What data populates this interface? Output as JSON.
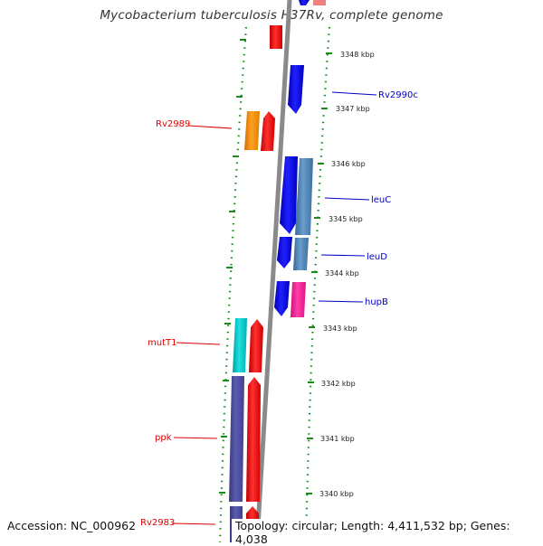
{
  "title": "Mycobacterium tuberculosis H37Rv, complete genome",
  "footer": {
    "accession": "Accession: NC_000962",
    "topology": "Topology: circular; Length: 4,411,532 bp; Genes: 4,038"
  },
  "ticks": [
    "3348 kbp",
    "3347 kbp",
    "3346 kbp",
    "3345 kbp",
    "3344 kbp",
    "3343 kbp",
    "3342 kbp",
    "3341 kbp",
    "3340 kbp"
  ],
  "left_labels": [
    "Rv2989",
    "mutT1",
    "ppk",
    "Rv2983"
  ],
  "right_labels": [
    "Rv2990c",
    "leuC",
    "leuD",
    "hupB"
  ],
  "colors": {
    "red": "#ff0000",
    "blue": "#0000ff",
    "orange": "#ff9900",
    "cyan": "#00cccc",
    "purple": "#4b4c9c",
    "steelblue": "#4682b4",
    "pink": "#ff1493",
    "backbone": "#808080",
    "dots": "#1a8a1a"
  }
}
